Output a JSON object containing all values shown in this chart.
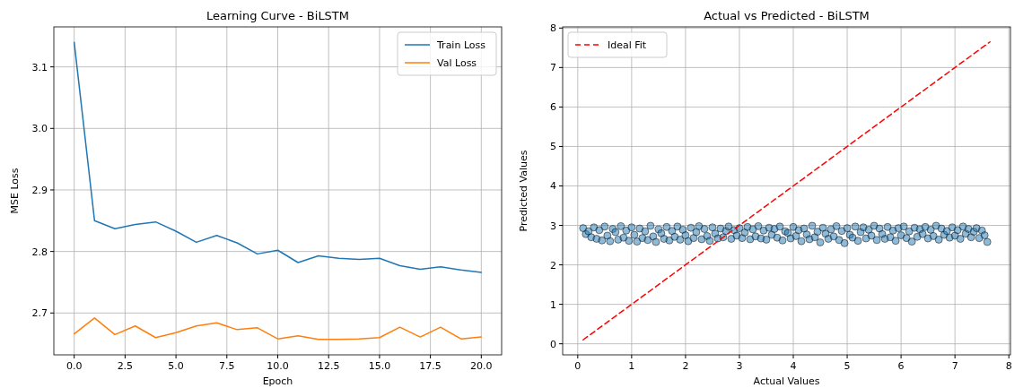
{
  "chart_data": [
    {
      "type": "line",
      "title": "Learning Curve - BiLSTM",
      "xlabel": "Epoch",
      "ylabel": "MSE Loss",
      "x": [
        0,
        1,
        2,
        3,
        4,
        5,
        6,
        7,
        8,
        9,
        10,
        11,
        12,
        13,
        14,
        15,
        16,
        17,
        18,
        19,
        20
      ],
      "series": [
        {
          "name": "Train Loss",
          "color": "#1f77b4",
          "values": [
            3.14,
            2.85,
            2.837,
            2.844,
            2.848,
            2.833,
            2.815,
            2.826,
            2.814,
            2.796,
            2.802,
            2.782,
            2.793,
            2.789,
            2.787,
            2.789,
            2.777,
            2.771,
            2.775,
            2.77,
            2.766
          ]
        },
        {
          "name": "Val Loss",
          "color": "#ff7f0e",
          "values": [
            2.666,
            2.692,
            2.665,
            2.679,
            2.66,
            2.668,
            2.679,
            2.684,
            2.673,
            2.676,
            2.658,
            2.663,
            2.657,
            2.657,
            2.658,
            2.66,
            2.677,
            2.661,
            2.677,
            2.658,
            2.661
          ]
        }
      ],
      "xlim": [
        -1.0,
        21.0
      ],
      "xticks": [
        {
          "value": 0,
          "label": "0.0"
        },
        {
          "value": 2.5,
          "label": "2.5"
        },
        {
          "value": 5,
          "label": "5.0"
        },
        {
          "value": 7.5,
          "label": "7.5"
        },
        {
          "value": 10,
          "label": "10.0"
        },
        {
          "value": 12.5,
          "label": "12.5"
        },
        {
          "value": 15,
          "label": "15.0"
        },
        {
          "value": 17.5,
          "label": "17.5"
        },
        {
          "value": 20,
          "label": "20.0"
        }
      ],
      "ylim": [
        2.632,
        3.165
      ],
      "yticks": [
        {
          "value": 2.7,
          "label": "2.7"
        },
        {
          "value": 2.8,
          "label": "2.8"
        },
        {
          "value": 2.9,
          "label": "2.9"
        },
        {
          "value": 3.0,
          "label": "3.0"
        },
        {
          "value": 3.1,
          "label": "3.1"
        }
      ],
      "grid": true,
      "legend": "top right",
      "marker": "none",
      "line_style": "solid"
    },
    {
      "type": "scatter",
      "title": "Actual vs Predicted - BiLSTM",
      "xlabel": "Actual Values",
      "ylabel": "Predicted Values",
      "series": [
        {
          "color": "#1f77b4",
          "marker": "circle",
          "x": [
            0.1,
            0.15,
            0.2,
            0.25,
            0.3,
            0.35,
            0.4,
            0.45,
            0.5,
            0.55,
            0.6,
            0.65,
            0.7,
            0.75,
            0.8,
            0.85,
            0.9,
            0.95,
            1.0,
            1.05,
            1.1,
            1.15,
            1.2,
            1.25,
            1.3,
            1.35,
            1.4,
            1.45,
            1.5,
            1.55,
            1.6,
            1.65,
            1.7,
            1.75,
            1.8,
            1.85,
            1.9,
            1.95,
            2.0,
            2.05,
            2.1,
            2.15,
            2.2,
            2.25,
            2.3,
            2.35,
            2.4,
            2.45,
            2.5,
            2.55,
            2.6,
            2.65,
            2.7,
            2.75,
            2.8,
            2.85,
            2.9,
            2.95,
            3.0,
            3.05,
            3.1,
            3.15,
            3.2,
            3.25,
            3.3,
            3.35,
            3.4,
            3.45,
            3.5,
            3.55,
            3.6,
            3.65,
            3.7,
            3.75,
            3.8,
            3.85,
            3.9,
            3.95,
            4.0,
            4.05,
            4.1,
            4.15,
            4.2,
            4.25,
            4.3,
            4.35,
            4.4,
            4.45,
            4.5,
            4.55,
            4.6,
            4.65,
            4.7,
            4.75,
            4.8,
            4.85,
            4.9,
            4.95,
            5.0,
            5.05,
            5.1,
            5.15,
            5.2,
            5.25,
            5.3,
            5.35,
            5.4,
            5.45,
            5.5,
            5.55,
            5.6,
            5.65,
            5.7,
            5.75,
            5.8,
            5.85,
            5.9,
            5.95,
            6.0,
            6.05,
            6.1,
            6.15,
            6.2,
            6.25,
            6.3,
            6.35,
            6.4,
            6.45,
            6.5,
            6.55,
            6.6,
            6.65,
            6.7,
            6.75,
            6.8,
            6.85,
            6.9,
            6.95,
            7.0,
            7.05,
            7.1,
            7.15,
            7.2,
            7.25,
            7.3,
            7.35,
            7.4,
            7.45,
            7.5,
            7.55,
            7.6
          ],
          "values": [
            2.93,
            2.78,
            2.85,
            2.7,
            2.95,
            2.66,
            2.88,
            2.62,
            2.97,
            2.74,
            2.6,
            2.91,
            2.83,
            2.64,
            2.98,
            2.69,
            2.87,
            2.61,
            2.95,
            2.76,
            2.59,
            2.92,
            2.68,
            2.85,
            2.63,
            2.99,
            2.72,
            2.58,
            2.9,
            2.8,
            2.66,
            2.96,
            2.62,
            2.86,
            2.71,
            2.97,
            2.64,
            2.89,
            2.75,
            2.6,
            2.94,
            2.68,
            2.83,
            2.98,
            2.65,
            2.91,
            2.73,
            2.61,
            2.95,
            2.79,
            2.67,
            2.92,
            2.7,
            2.86,
            2.97,
            2.66,
            2.88,
            2.74,
            2.93,
            2.68,
            2.82,
            2.96,
            2.65,
            2.9,
            2.72,
            2.98,
            2.67,
            2.87,
            2.64,
            2.94,
            2.76,
            2.91,
            2.69,
            2.97,
            2.62,
            2.85,
            2.81,
            2.67,
            2.96,
            2.73,
            2.88,
            2.6,
            2.92,
            2.77,
            2.65,
            2.99,
            2.7,
            2.84,
            2.57,
            2.94,
            2.79,
            2.66,
            2.9,
            2.72,
            2.98,
            2.63,
            2.86,
            2.55,
            2.93,
            2.76,
            2.69,
            2.97,
            2.61,
            2.83,
            2.95,
            2.67,
            2.89,
            2.74,
            2.99,
            2.63,
            2.92,
            2.78,
            2.66,
            2.96,
            2.7,
            2.87,
            2.61,
            2.93,
            2.75,
            2.97,
            2.68,
            2.85,
            2.59,
            2.94,
            2.71,
            2.9,
            2.78,
            2.96,
            2.67,
            2.89,
            2.73,
            2.99,
            2.64,
            2.92,
            2.76,
            2.86,
            2.69,
            2.95,
            2.74,
            2.88,
            2.66,
            2.97,
            2.79,
            2.91,
            2.7,
            2.84,
            2.93,
            2.68,
            2.87,
            2.75,
            2.58
          ]
        },
        {
          "type": "line",
          "name": "Ideal Fit",
          "color": "#ff0000",
          "line_style": "dashed",
          "marker": "none",
          "x": [
            0.1,
            7.65
          ],
          "values": [
            0.1,
            7.65
          ]
        }
      ],
      "xlim": [
        -0.28,
        8.03
      ],
      "xticks": [
        0,
        1,
        2,
        3,
        4,
        5,
        6,
        7,
        8
      ],
      "ylim": [
        -0.28,
        8.03
      ],
      "yticks": [
        0,
        1,
        2,
        3,
        4,
        5,
        6,
        7,
        8
      ],
      "grid": true,
      "legend": "top left"
    }
  ]
}
